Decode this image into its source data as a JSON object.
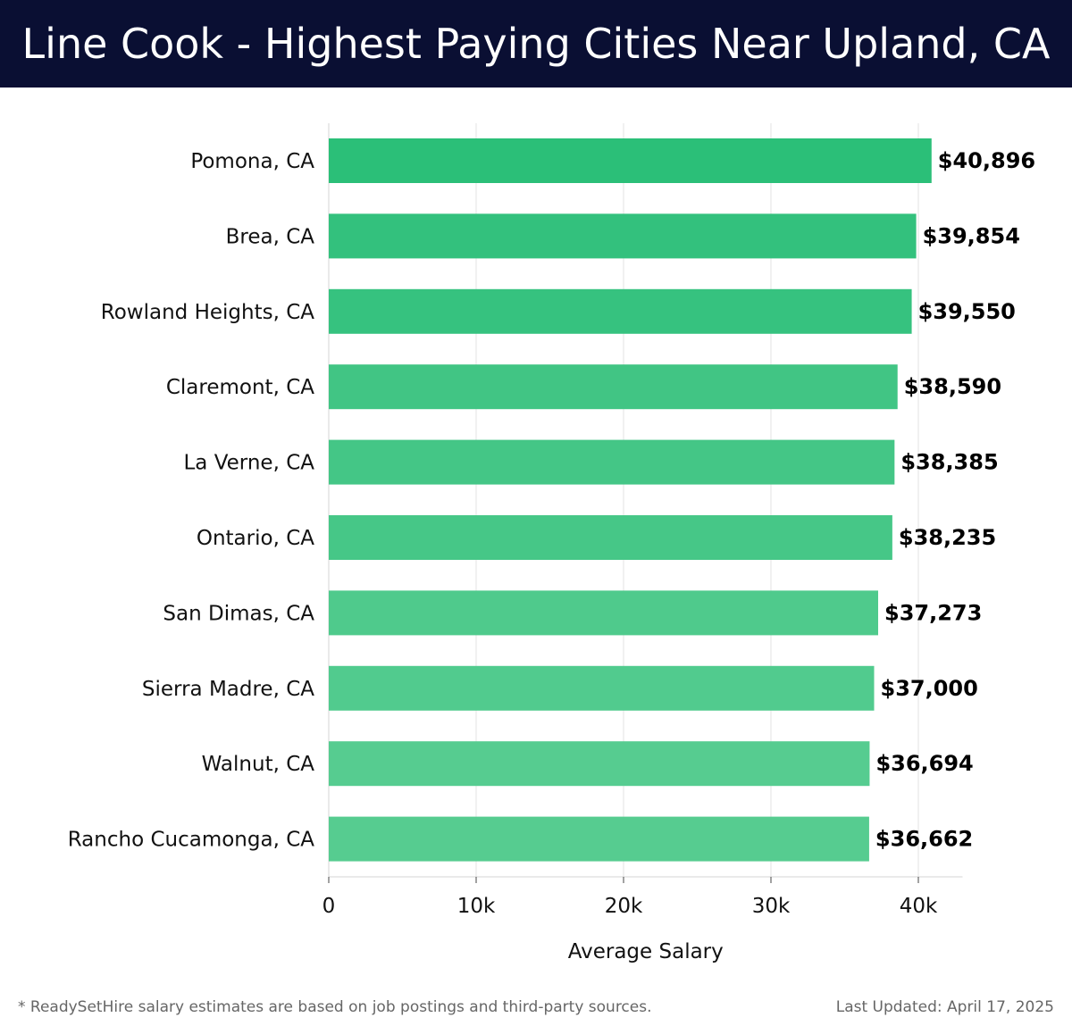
{
  "header": {
    "title": "Line Cook - Highest Paying Cities Near Upland, CA"
  },
  "chart_data": {
    "type": "bar",
    "orientation": "horizontal",
    "categories": [
      "Pomona, CA",
      "Brea, CA",
      "Rowland Heights, CA",
      "Claremont, CA",
      "La Verne, CA",
      "Ontario, CA",
      "San Dimas, CA",
      "Sierra Madre, CA",
      "Walnut, CA",
      "Rancho Cucamonga, CA"
    ],
    "values": [
      40896,
      39854,
      39550,
      38590,
      38385,
      38235,
      37273,
      37000,
      36694,
      36662
    ],
    "value_labels": [
      "$40,896",
      "$39,854",
      "$39,550",
      "$38,590",
      "$38,385",
      "$38,235",
      "$37,273",
      "$37,000",
      "$36,694",
      "$36,662"
    ],
    "xlabel": "Average Salary",
    "ylabel": "",
    "xlim": [
      0,
      43000
    ],
    "ticks": [
      0,
      10000,
      20000,
      30000,
      40000
    ],
    "tick_labels": [
      "0",
      "10k",
      "20k",
      "30k",
      "40k"
    ],
    "grid": "vertical",
    "bar_colors": [
      "#2bbf78",
      "#33c17d",
      "#36c27f",
      "#41c584",
      "#44c686",
      "#46c787",
      "#4fca8c",
      "#51cb8e",
      "#56cc90",
      "#56cc90"
    ]
  },
  "footer": {
    "note": "* ReadySetHire salary estimates are based on job postings and third-party sources.",
    "updated": "Last Updated: April 17, 2025"
  }
}
